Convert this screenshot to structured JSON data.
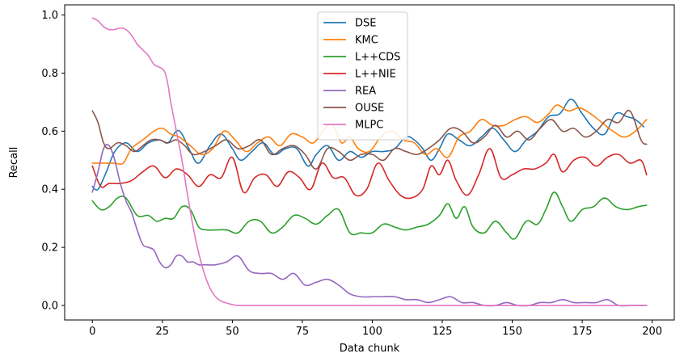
{
  "chart_data": {
    "type": "line",
    "title": "",
    "xlabel": "Data chunk",
    "ylabel": "Recall",
    "xlim": [
      -9.9,
      207.9
    ],
    "ylim": [
      -0.05,
      1.035
    ],
    "xticks": [
      0,
      25,
      50,
      75,
      100,
      125,
      150,
      175,
      200
    ],
    "yticks": [
      0.0,
      0.2,
      0.4,
      0.6,
      0.8,
      1.0
    ],
    "xtick_labels": [
      "0",
      "25",
      "50",
      "75",
      "100",
      "125",
      "150",
      "175",
      "200"
    ],
    "ytick_labels": [
      "0.0",
      "0.2",
      "0.4",
      "0.6",
      "0.8",
      "1.0"
    ],
    "grid": false,
    "legend_position": "upper center",
    "series": [
      {
        "name": "DSE",
        "color": "#1f77b4",
        "x": [
          0,
          2,
          5,
          8,
          12,
          16,
          20,
          24,
          27,
          30,
          32,
          35,
          38,
          42,
          46,
          50,
          53,
          57,
          61,
          65,
          69,
          73,
          77,
          80,
          84,
          88,
          92,
          96,
          100,
          104,
          108,
          112,
          115,
          118,
          121,
          124,
          127,
          131,
          135,
          139,
          143,
          147,
          151,
          155,
          159,
          163,
          167,
          171,
          175,
          179,
          183,
          187,
          191,
          194,
          197
        ],
        "values": [
          0.41,
          0.4,
          0.46,
          0.53,
          0.56,
          0.53,
          0.56,
          0.57,
          0.56,
          0.6,
          0.59,
          0.53,
          0.49,
          0.55,
          0.59,
          0.54,
          0.5,
          0.53,
          0.56,
          0.52,
          0.54,
          0.54,
          0.48,
          0.52,
          0.55,
          0.5,
          0.53,
          0.51,
          0.53,
          0.53,
          0.54,
          0.58,
          0.57,
          0.54,
          0.5,
          0.54,
          0.59,
          0.57,
          0.55,
          0.58,
          0.61,
          0.57,
          0.53,
          0.57,
          0.6,
          0.65,
          0.66,
          0.71,
          0.66,
          0.61,
          0.59,
          0.66,
          0.65,
          0.64,
          0.615
        ]
      },
      {
        "name": "KMC",
        "color": "#ff7f0e",
        "x": [
          0,
          4,
          8,
          11,
          14,
          18,
          22,
          25,
          28,
          31,
          35,
          39,
          43,
          47,
          51,
          55,
          59,
          63,
          67,
          71,
          75,
          79,
          83,
          86,
          89,
          92,
          95,
          99,
          103,
          107,
          111,
          115,
          119,
          123,
          127,
          131,
          135,
          139,
          143,
          147,
          151,
          155,
          159,
          163,
          166,
          170,
          174,
          178,
          182,
          186,
          190,
          194,
          198
        ],
        "values": [
          0.49,
          0.49,
          0.49,
          0.49,
          0.54,
          0.57,
          0.6,
          0.61,
          0.59,
          0.58,
          0.55,
          0.52,
          0.54,
          0.6,
          0.57,
          0.53,
          0.56,
          0.58,
          0.55,
          0.59,
          0.58,
          0.56,
          0.61,
          0.62,
          0.56,
          0.58,
          0.54,
          0.53,
          0.58,
          0.6,
          0.57,
          0.56,
          0.52,
          0.54,
          0.51,
          0.58,
          0.6,
          0.64,
          0.62,
          0.62,
          0.64,
          0.65,
          0.63,
          0.66,
          0.69,
          0.67,
          0.68,
          0.66,
          0.63,
          0.6,
          0.58,
          0.6,
          0.64
        ]
      },
      {
        "name": "L++CDS",
        "color": "#2ca02c",
        "x": [
          0,
          3,
          6,
          9,
          12,
          16,
          20,
          23,
          26,
          29,
          32,
          35,
          38,
          41,
          44,
          48,
          52,
          56,
          60,
          64,
          68,
          72,
          76,
          80,
          84,
          88,
          92,
          96,
          100,
          104,
          108,
          112,
          116,
          120,
          124,
          127,
          130,
          133,
          136,
          140,
          144,
          148,
          151,
          155,
          159,
          162,
          165,
          168,
          171,
          175,
          179,
          183,
          187,
          191,
          195,
          198
        ],
        "values": [
          0.36,
          0.33,
          0.34,
          0.37,
          0.37,
          0.31,
          0.31,
          0.29,
          0.3,
          0.3,
          0.34,
          0.33,
          0.27,
          0.26,
          0.26,
          0.26,
          0.25,
          0.29,
          0.29,
          0.25,
          0.27,
          0.31,
          0.3,
          0.28,
          0.31,
          0.33,
          0.25,
          0.25,
          0.25,
          0.28,
          0.27,
          0.26,
          0.27,
          0.28,
          0.31,
          0.35,
          0.3,
          0.34,
          0.27,
          0.25,
          0.29,
          0.25,
          0.23,
          0.29,
          0.28,
          0.33,
          0.39,
          0.34,
          0.29,
          0.33,
          0.34,
          0.37,
          0.34,
          0.33,
          0.34,
          0.345
        ]
      },
      {
        "name": "L++NIE",
        "color": "#d62728",
        "x": [
          0,
          3,
          6,
          10,
          14,
          18,
          22,
          26,
          30,
          34,
          38,
          42,
          46,
          50,
          54,
          58,
          62,
          66,
          70,
          74,
          78,
          82,
          86,
          90,
          94,
          98,
          102,
          106,
          110,
          114,
          118,
          121,
          124,
          127,
          130,
          134,
          138,
          142,
          146,
          150,
          154,
          158,
          162,
          165,
          168,
          172,
          176,
          180,
          184,
          188,
          192,
          196,
          198
        ],
        "values": [
          0.48,
          0.41,
          0.42,
          0.42,
          0.43,
          0.46,
          0.48,
          0.44,
          0.47,
          0.45,
          0.41,
          0.45,
          0.44,
          0.51,
          0.39,
          0.44,
          0.45,
          0.41,
          0.46,
          0.44,
          0.4,
          0.49,
          0.44,
          0.44,
          0.38,
          0.4,
          0.49,
          0.43,
          0.38,
          0.37,
          0.4,
          0.48,
          0.45,
          0.5,
          0.43,
          0.38,
          0.45,
          0.54,
          0.44,
          0.45,
          0.47,
          0.47,
          0.49,
          0.52,
          0.46,
          0.5,
          0.51,
          0.48,
          0.51,
          0.52,
          0.49,
          0.5,
          0.45
        ]
      },
      {
        "name": "REA",
        "color": "#9467bd",
        "x": [
          0,
          2,
          4,
          6,
          8,
          10,
          12,
          14,
          16,
          18,
          20,
          22,
          24,
          26,
          28,
          30,
          32,
          34,
          36,
          38,
          40,
          44,
          48,
          52,
          56,
          60,
          64,
          68,
          72,
          76,
          80,
          84,
          88,
          92,
          96,
          100,
          104,
          108,
          112,
          116,
          120,
          124,
          128,
          132,
          136,
          140,
          144,
          148,
          152,
          156,
          160,
          164,
          168,
          172,
          176,
          180,
          184,
          188,
          192,
          196,
          198
        ],
        "values": [
          0.39,
          0.46,
          0.54,
          0.55,
          0.5,
          0.42,
          0.36,
          0.32,
          0.26,
          0.21,
          0.2,
          0.19,
          0.15,
          0.13,
          0.14,
          0.17,
          0.17,
          0.15,
          0.15,
          0.14,
          0.14,
          0.14,
          0.15,
          0.17,
          0.12,
          0.11,
          0.11,
          0.09,
          0.11,
          0.07,
          0.08,
          0.09,
          0.07,
          0.04,
          0.03,
          0.03,
          0.03,
          0.03,
          0.02,
          0.02,
          0.01,
          0.02,
          0.03,
          0.01,
          0.01,
          0.0,
          0.0,
          0.01,
          0.0,
          0.0,
          0.01,
          0.01,
          0.02,
          0.01,
          0.01,
          0.01,
          0.02,
          0.0,
          0.0,
          0.0,
          0.0
        ]
      },
      {
        "name": "OUSE",
        "color": "#8c564b",
        "x": [
          0,
          2,
          4,
          6,
          9,
          12,
          15,
          18,
          21,
          24,
          27,
          30,
          33,
          36,
          40,
          44,
          48,
          52,
          56,
          60,
          64,
          68,
          72,
          76,
          80,
          84,
          88,
          92,
          96,
          100,
          104,
          108,
          112,
          116,
          120,
          124,
          128,
          132,
          136,
          140,
          144,
          148,
          152,
          156,
          160,
          164,
          168,
          172,
          176,
          180,
          184,
          188,
          192,
          196,
          198
        ],
        "values": [
          0.67,
          0.63,
          0.56,
          0.54,
          0.56,
          0.55,
          0.53,
          0.55,
          0.57,
          0.57,
          0.56,
          0.57,
          0.55,
          0.52,
          0.53,
          0.55,
          0.57,
          0.54,
          0.55,
          0.57,
          0.52,
          0.54,
          0.55,
          0.52,
          0.47,
          0.54,
          0.53,
          0.5,
          0.52,
          0.52,
          0.5,
          0.54,
          0.53,
          0.52,
          0.54,
          0.57,
          0.61,
          0.6,
          0.56,
          0.58,
          0.62,
          0.58,
          0.6,
          0.57,
          0.61,
          0.64,
          0.6,
          0.61,
          0.58,
          0.6,
          0.64,
          0.63,
          0.67,
          0.57,
          0.555
        ]
      },
      {
        "name": "MLPC",
        "color": "#e377c2",
        "x": [
          0,
          2,
          4,
          6,
          8,
          10,
          12,
          14,
          16,
          18,
          20,
          22,
          24,
          25,
          26,
          27,
          28,
          30,
          32,
          34,
          36,
          38,
          40,
          42,
          44,
          46,
          48,
          50,
          52,
          56,
          60,
          70,
          80,
          100,
          120,
          140,
          160,
          180,
          198
        ],
        "values": [
          0.99,
          0.98,
          0.96,
          0.95,
          0.95,
          0.955,
          0.95,
          0.93,
          0.9,
          0.88,
          0.86,
          0.83,
          0.82,
          0.815,
          0.8,
          0.76,
          0.7,
          0.6,
          0.5,
          0.38,
          0.27,
          0.18,
          0.11,
          0.06,
          0.03,
          0.015,
          0.008,
          0.003,
          0.0,
          0.0,
          0.0,
          0.0,
          0.0,
          0.0,
          0.0,
          0.0,
          0.0,
          0.0,
          0.0
        ]
      }
    ]
  }
}
